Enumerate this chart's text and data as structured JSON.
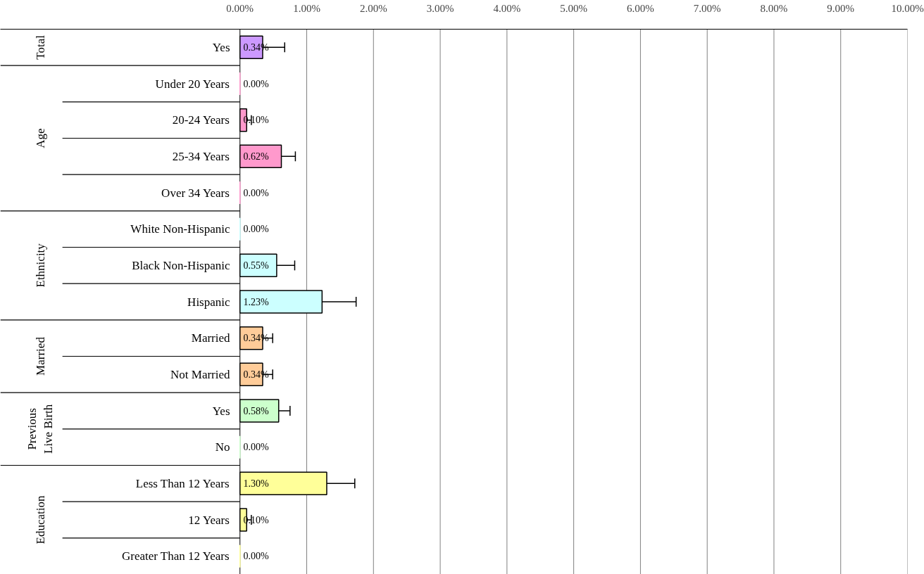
{
  "chart_data": {
    "type": "bar",
    "orientation": "horizontal",
    "categories": [
      "Yes",
      "Under 20 Years",
      "20-24 Years",
      "25-34 Years",
      "Over 34 Years",
      "White Non-Hispanic",
      "Black Non-Hispanic",
      "Hispanic",
      "Married",
      "Not Married",
      "Yes",
      "No",
      "Less Than 12 Years",
      "12 Years",
      "Greater Than 12 Years"
    ],
    "values": [
      0.34,
      0.0,
      0.1,
      0.62,
      0.0,
      0.0,
      0.55,
      1.23,
      0.34,
      0.34,
      0.58,
      0.0,
      1.3,
      0.1,
      0.0
    ],
    "errors": [
      0.33,
      null,
      0.07,
      0.21,
      null,
      null,
      0.27,
      0.51,
      0.15,
      0.15,
      0.17,
      null,
      0.42,
      0.07,
      null
    ],
    "value_labels": [
      "0.34%",
      "0.00%",
      "0.10%",
      "0.62%",
      "0.00%",
      "0.00%",
      "0.55%",
      "1.23%",
      "0.34%",
      "0.34%",
      "0.58%",
      "0.00%",
      "1.30%",
      "0.10%",
      "0.00%"
    ],
    "colors": [
      "#cc99ff",
      "#ff99cc",
      "#ff99cc",
      "#ff99cc",
      "#ff99cc",
      "#ccffff",
      "#ccffff",
      "#ccffff",
      "#ffcc99",
      "#ffcc99",
      "#ccffcc",
      "#ccffcc",
      "#ffff99",
      "#ffff99",
      "#ffff99"
    ],
    "xlim": [
      0,
      10
    ],
    "xticks": [
      {
        "value": 0,
        "label": "0.00%"
      },
      {
        "value": 1,
        "label": "1.00%"
      },
      {
        "value": 2,
        "label": "2.00%"
      },
      {
        "value": 3,
        "label": "3.00%"
      },
      {
        "value": 4,
        "label": "4.00%"
      },
      {
        "value": 5,
        "label": "5.00%"
      },
      {
        "value": 6,
        "label": "6.00%"
      },
      {
        "value": 7,
        "label": "7.00%"
      },
      {
        "value": 8,
        "label": "8.00%"
      },
      {
        "value": 9,
        "label": "9.00%"
      },
      {
        "value": 10,
        "label": "10.00%"
      }
    ],
    "grid": "x",
    "annotations": [
      "Total",
      "Age",
      "Ethnicity",
      "Married",
      "Previous Live Birth",
      "Education"
    ]
  }
}
